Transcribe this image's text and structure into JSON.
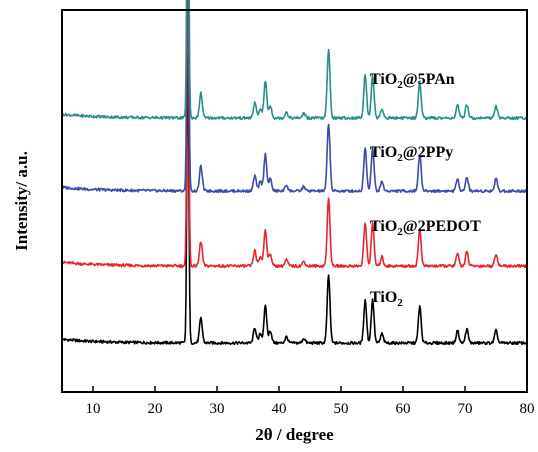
{
  "chart_data": {
    "type": "line",
    "xlabel": "2θ / degree",
    "ylabel": "Intensity/ a.u.",
    "xlim": [
      5,
      80
    ],
    "xticks": [
      10,
      20,
      30,
      40,
      50,
      60,
      70,
      80
    ],
    "y_tick_labels": "none",
    "grid": false,
    "legend": "none",
    "peaks_2theta": [
      25.3,
      27.4,
      36.1,
      37.0,
      37.8,
      38.6,
      41.2,
      44.0,
      48.0,
      53.9,
      55.1,
      56.6,
      62.7,
      68.8,
      70.3,
      75.0
    ],
    "series": [
      {
        "name": "TiO2",
        "label_main": "TiO",
        "label_sub": "2",
        "label_rest": "",
        "color": "#000000",
        "baseline": 0,
        "intensities": [
          100,
          8,
          5,
          3,
          12,
          4,
          2,
          1.5,
          22,
          14,
          14,
          3,
          12,
          4,
          4.5,
          4
        ]
      },
      {
        "name": "TiO2@2PEDOT",
        "label_main": "TiO",
        "label_sub": "2",
        "label_rest": "@2PEDOT",
        "color": "#e8262a",
        "baseline": 1,
        "intensities": [
          100,
          8,
          5,
          3,
          12,
          4,
          2,
          1.5,
          22,
          14,
          14,
          3,
          12,
          4,
          4.5,
          4
        ]
      },
      {
        "name": "TiO2@2PPy",
        "label_main": "TiO",
        "label_sub": "2",
        "label_rest": "@2PPy",
        "color": "#3b4aad",
        "baseline": 2,
        "intensities": [
          100,
          8,
          5,
          3,
          12,
          4,
          2,
          1.5,
          22,
          14,
          14,
          3,
          12,
          4,
          4.5,
          4
        ]
      },
      {
        "name": "TiO2@5PAn",
        "label_main": "TiO",
        "label_sub": "2",
        "label_rest": "@5PAn",
        "color": "#2a8f88",
        "baseline": 3,
        "intensities": [
          100,
          8,
          5,
          3,
          12,
          4,
          2,
          1.5,
          22,
          14,
          14,
          3,
          12,
          4,
          4.5,
          4
        ]
      }
    ]
  }
}
